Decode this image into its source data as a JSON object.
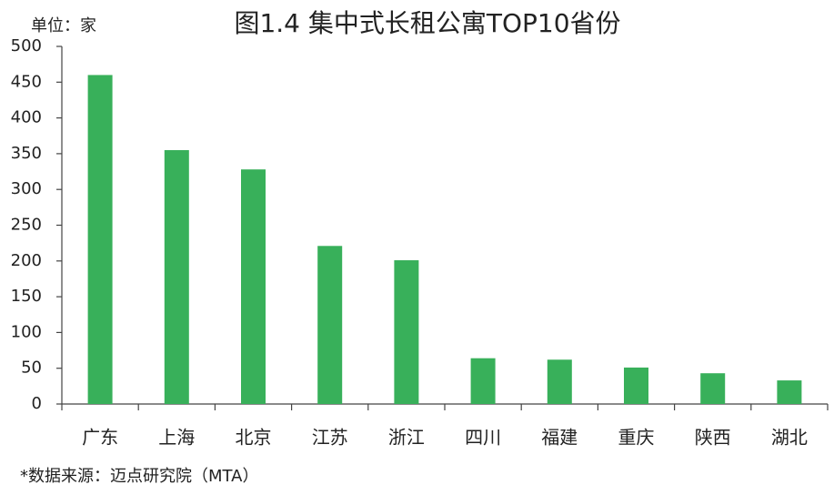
{
  "chart_data": {
    "type": "bar",
    "title": "图1.4 集中式长租公寓TOP10省份",
    "unit_label": "单位：家",
    "source": "*数据来源：迈点研究院（MTA）",
    "categories": [
      "广东",
      "上海",
      "北京",
      "江苏",
      "浙江",
      "四川",
      "福建",
      "重庆",
      "陕西",
      "湖北"
    ],
    "values": [
      460,
      355,
      328,
      221,
      201,
      64,
      62,
      51,
      43,
      33
    ],
    "color": "#38b05a",
    "ylim": [
      0,
      500
    ],
    "yticks": [
      0,
      50,
      100,
      150,
      200,
      250,
      300,
      350,
      400,
      450,
      500
    ],
    "grid": false
  }
}
